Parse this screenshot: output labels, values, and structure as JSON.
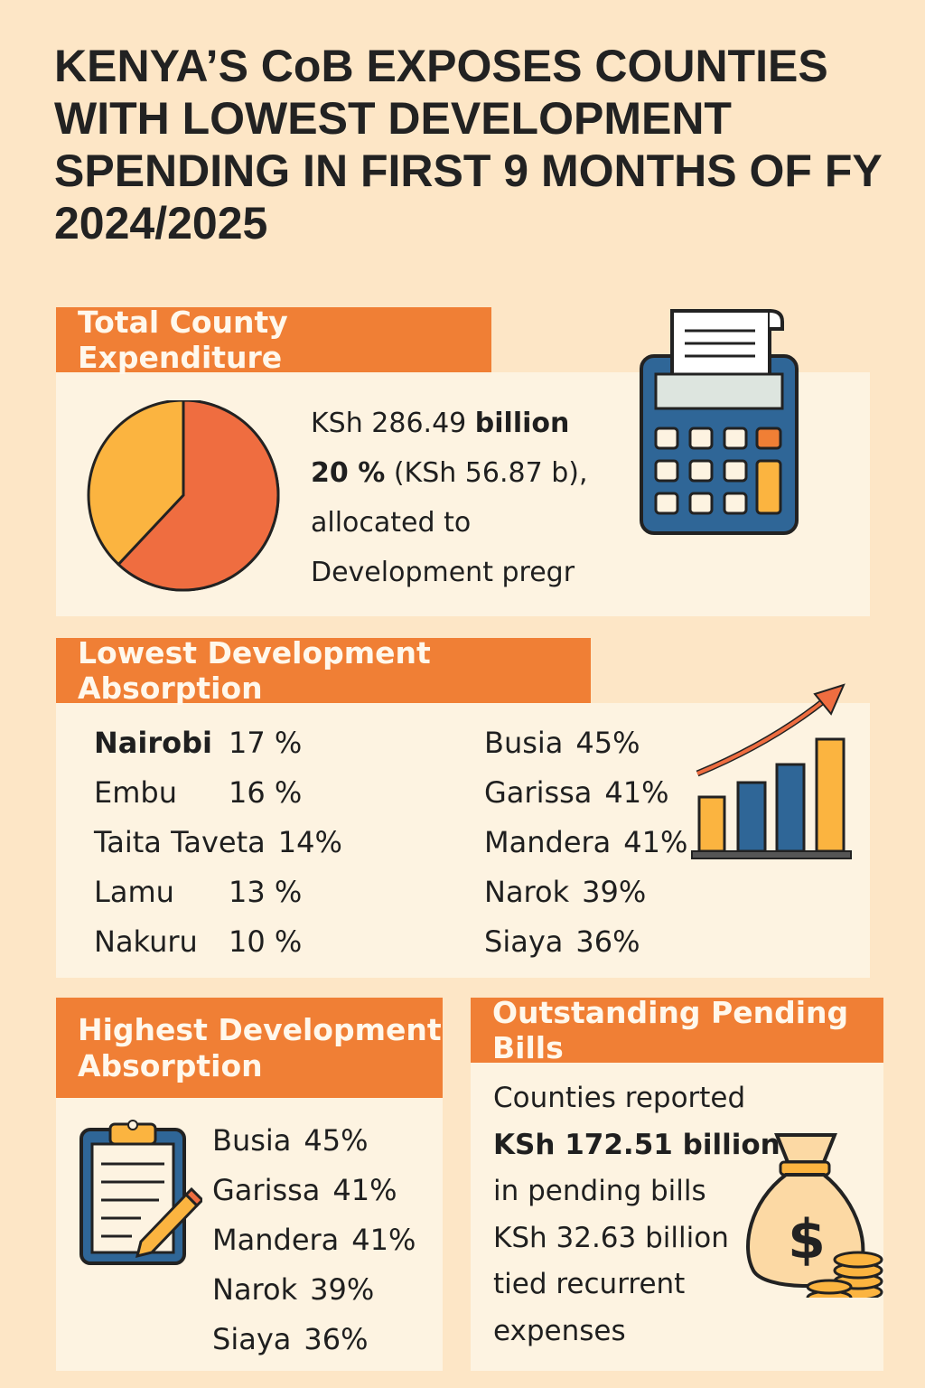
{
  "title": "KENYA’S CoB EXPOSES COUNTIES WITH LOWEST DEVELOPMENT SPENDING IN FIRST 9 MONTHS OF FY 2024/2025",
  "colors": {
    "background": "#fde6c6",
    "panel": "#fdf3e1",
    "header": "#f07f35",
    "pie_main": "#ef6d40",
    "pie_other": "#fbb440",
    "blue": "#2f6697"
  },
  "total_expenditure": {
    "header": "Total County Expenditure",
    "line1_value": "KSh 286.49",
    "line1_unit": "billion",
    "line2_pct": "20 %",
    "line2_rest": "(KSh 56.87 b),",
    "line3": "allocated to",
    "line4": "Development pregr",
    "pie_fraction_orange": 0.62,
    "icon": "calculator-icon"
  },
  "lowest": {
    "header": "Lowest Development Absorption",
    "left": [
      {
        "name": "Nairobi",
        "pct": "17 %"
      },
      {
        "name": "Embu",
        "pct": "16 %"
      },
      {
        "name": "Taita Taveta",
        "pct": "14%"
      },
      {
        "name": "Lamu",
        "pct": "13 %"
      },
      {
        "name": "Nakuru",
        "pct": "10 %"
      }
    ],
    "right": [
      {
        "name": "Busia",
        "pct": "45%"
      },
      {
        "name": "Garissa",
        "pct": "41%"
      },
      {
        "name": "Mandera",
        "pct": "41%"
      },
      {
        "name": "Narok",
        "pct": "39%"
      },
      {
        "name": "Siaya",
        "pct": "36%"
      }
    ],
    "icon": "bar-chart-growth-icon"
  },
  "highest": {
    "header_line1": "Highest Development",
    "header_line2": "Absorption",
    "items": [
      {
        "name": "Busia",
        "pct": "45%"
      },
      {
        "name": "Garissa",
        "pct": "41%"
      },
      {
        "name": "Mandera",
        "pct": "41%"
      },
      {
        "name": "Narok",
        "pct": "39%"
      },
      {
        "name": "Siaya",
        "pct": "36%"
      }
    ],
    "icon": "clipboard-icon"
  },
  "pending": {
    "header": "Outstanding Pending Bills",
    "lines": [
      "Counties reported",
      "KSh 172.51 billion",
      "in pending bills",
      "KSh 32.63 billion",
      "tied recurrent",
      "expenses"
    ],
    "icon": "money-bag-icon"
  }
}
